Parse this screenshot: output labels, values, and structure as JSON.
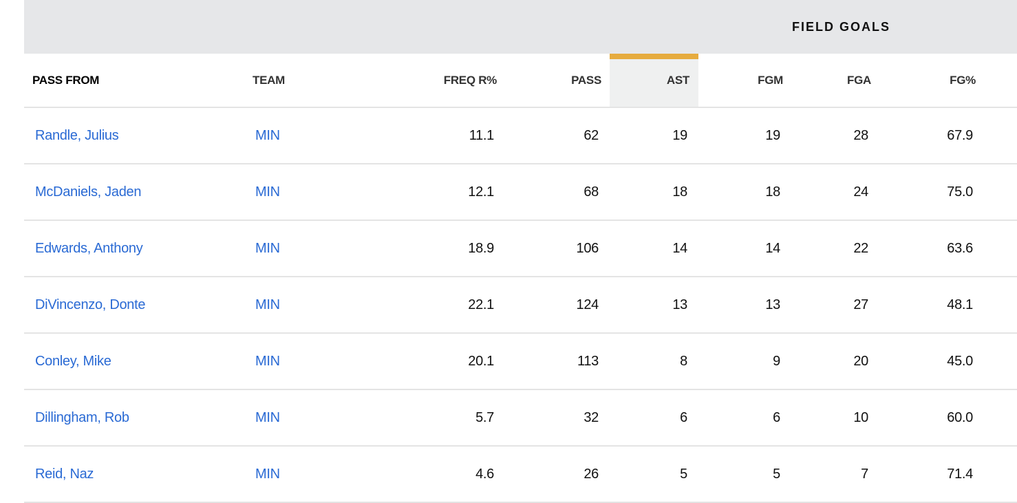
{
  "header_group": "FIELD GOALS",
  "columns": {
    "pass_from": "PASS FROM",
    "team": "TEAM",
    "freq": "FREQ R%",
    "pass": "PASS",
    "ast": "AST",
    "fgm": "FGM",
    "fga": "FGA",
    "fgp": "FG%"
  },
  "sorted_column_color": "#e6ab3e",
  "rows": [
    {
      "player": "Randle, Julius",
      "team": "MIN",
      "freq": "11.1",
      "pass": "62",
      "ast": "19",
      "fgm": "19",
      "fga": "28",
      "fgp": "67.9"
    },
    {
      "player": "McDaniels, Jaden",
      "team": "MIN",
      "freq": "12.1",
      "pass": "68",
      "ast": "18",
      "fgm": "18",
      "fga": "24",
      "fgp": "75.0"
    },
    {
      "player": "Edwards, Anthony",
      "team": "MIN",
      "freq": "18.9",
      "pass": "106",
      "ast": "14",
      "fgm": "14",
      "fga": "22",
      "fgp": "63.6"
    },
    {
      "player": "DiVincenzo, Donte",
      "team": "MIN",
      "freq": "22.1",
      "pass": "124",
      "ast": "13",
      "fgm": "13",
      "fga": "27",
      "fgp": "48.1"
    },
    {
      "player": "Conley, Mike",
      "team": "MIN",
      "freq": "20.1",
      "pass": "113",
      "ast": "8",
      "fgm": "9",
      "fga": "20",
      "fgp": "45.0"
    },
    {
      "player": "Dillingham, Rob",
      "team": "MIN",
      "freq": "5.7",
      "pass": "32",
      "ast": "6",
      "fgm": "6",
      "fga": "10",
      "fgp": "60.0"
    },
    {
      "player": "Reid, Naz",
      "team": "MIN",
      "freq": "4.6",
      "pass": "26",
      "ast": "5",
      "fgm": "5",
      "fga": "7",
      "fgp": "71.4"
    }
  ]
}
